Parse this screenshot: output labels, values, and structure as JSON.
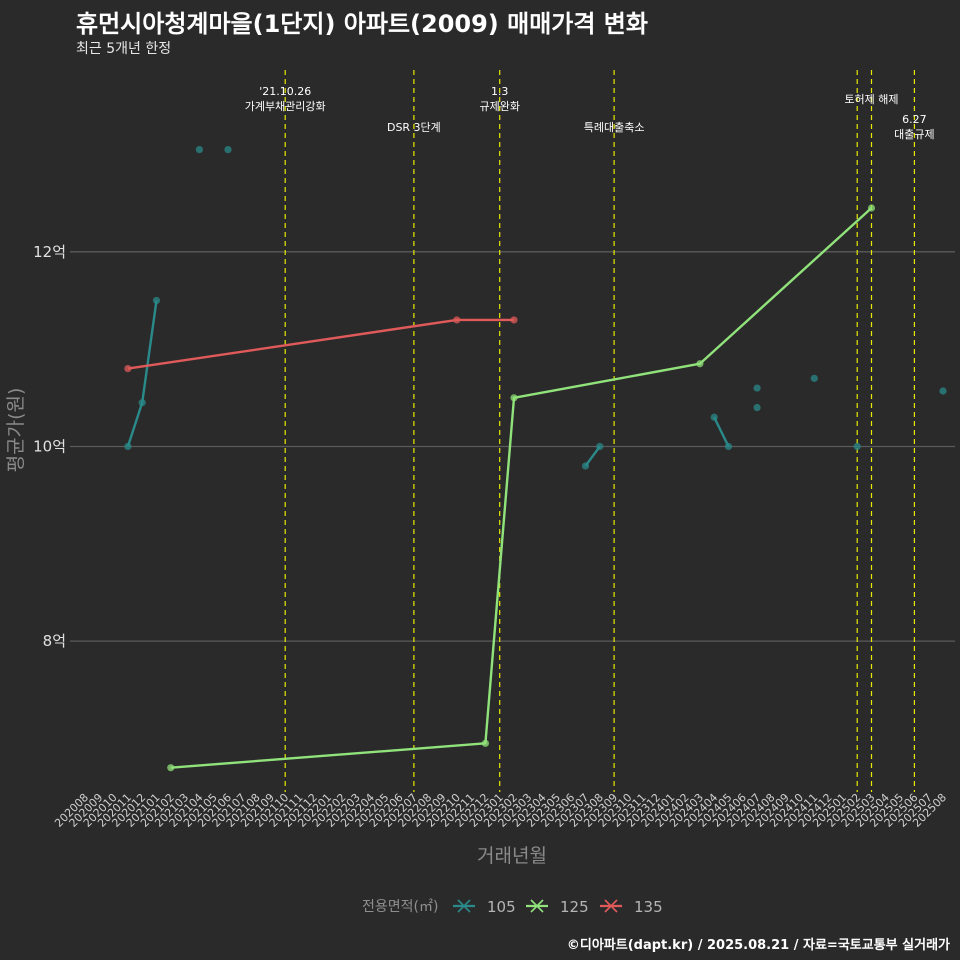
{
  "header": {
    "title": "휴먼시아청계마을(1단지) 아파트(2009) 매매가격 변화",
    "subtitle": "최근 5개년 한정"
  },
  "caption": "©디아파트(dapt.kr) / 2025.08.21 / 자료=국토교통부 실거래가",
  "colors": {
    "background": "#2b2a2b",
    "grid": "#5a5a5a",
    "vline": "#e8e800",
    "s105": "#2a8a8a",
    "s125": "#90e27a",
    "s135": "#e05a5a"
  },
  "chart_data": {
    "type": "line",
    "title": "휴먼시아청계마을(1단지) 아파트(2009) 매매가격 변화",
    "xlabel": "거래년월",
    "ylabel": "평균가(원)",
    "ylim": [
      6.45,
      13.95
    ],
    "y_ticks": [
      {
        "value": 8,
        "label": "8억"
      },
      {
        "value": 10,
        "label": "10억"
      },
      {
        "value": 12,
        "label": "12억"
      }
    ],
    "x_categories": [
      "202008",
      "202009",
      "202010",
      "202011",
      "202012",
      "202101",
      "202102",
      "202103",
      "202104",
      "202105",
      "202106",
      "202107",
      "202108",
      "202109",
      "202110",
      "202111",
      "202112",
      "202201",
      "202202",
      "202203",
      "202204",
      "202205",
      "202206",
      "202207",
      "202208",
      "202209",
      "202210",
      "202211",
      "202212",
      "202301",
      "202302",
      "202303",
      "202304",
      "202305",
      "202306",
      "202307",
      "202308",
      "202309",
      "202310",
      "202311",
      "202312",
      "202401",
      "202402",
      "202403",
      "202404",
      "202405",
      "202406",
      "202407",
      "202408",
      "202409",
      "202410",
      "202411",
      "202412",
      "202501",
      "202502",
      "202503",
      "202504",
      "202505",
      "202506",
      "202507",
      "202508"
    ],
    "legend_title": "전용면적(㎡)",
    "legend": [
      "105",
      "125",
      "135"
    ],
    "series": [
      {
        "name": "105",
        "color": "#2a8a8a",
        "segments": [
          [
            {
              "x": "202011",
              "y": 10.0
            },
            {
              "x": "202012",
              "y": 10.45
            },
            {
              "x": "202101",
              "y": 11.5
            }
          ],
          [
            {
              "x": "202307",
              "y": 9.8
            },
            {
              "x": "202308",
              "y": 10.0
            }
          ],
          [
            {
              "x": "202404",
              "y": 10.3
            },
            {
              "x": "202405",
              "y": 10.0
            }
          ]
        ],
        "points": [
          {
            "x": "202104",
            "y": 13.05
          },
          {
            "x": "202106",
            "y": 13.05
          },
          {
            "x": "202407",
            "y": 10.6
          },
          {
            "x": "202407",
            "y": 10.4
          },
          {
            "x": "202411",
            "y": 10.7
          },
          {
            "x": "202502",
            "y": 10.0
          },
          {
            "x": "202508",
            "y": 10.57
          }
        ]
      },
      {
        "name": "125",
        "color": "#90e27a",
        "segments": [
          [
            {
              "x": "202102",
              "y": 6.7
            },
            {
              "x": "202212",
              "y": 6.95
            },
            {
              "x": "202302",
              "y": 10.5
            },
            {
              "x": "202403",
              "y": 10.85
            },
            {
              "x": "202503",
              "y": 12.45
            }
          ]
        ],
        "points": []
      },
      {
        "name": "135",
        "color": "#e05a5a",
        "segments": [
          [
            {
              "x": "202011",
              "y": 10.8
            },
            {
              "x": "202210",
              "y": 11.3
            },
            {
              "x": "202302",
              "y": 11.3
            }
          ]
        ],
        "points": []
      }
    ],
    "vlines": [
      {
        "x": "202110",
        "label": "'21.10.26\n가계부채관리강화",
        "row": 0
      },
      {
        "x": "202207",
        "label": "DSR 3단계",
        "row": 2
      },
      {
        "x": "202301",
        "label": "1.3\n규제완화",
        "row": 0
      },
      {
        "x": "202309",
        "label": "특례대출축소",
        "row": 2
      },
      {
        "x": "202502",
        "label": "",
        "row": 1
      },
      {
        "x": "202503",
        "label": "토허제 해제",
        "row": 1
      },
      {
        "x": "202506",
        "label": "6.27\n대출규제",
        "row": 3
      }
    ]
  }
}
